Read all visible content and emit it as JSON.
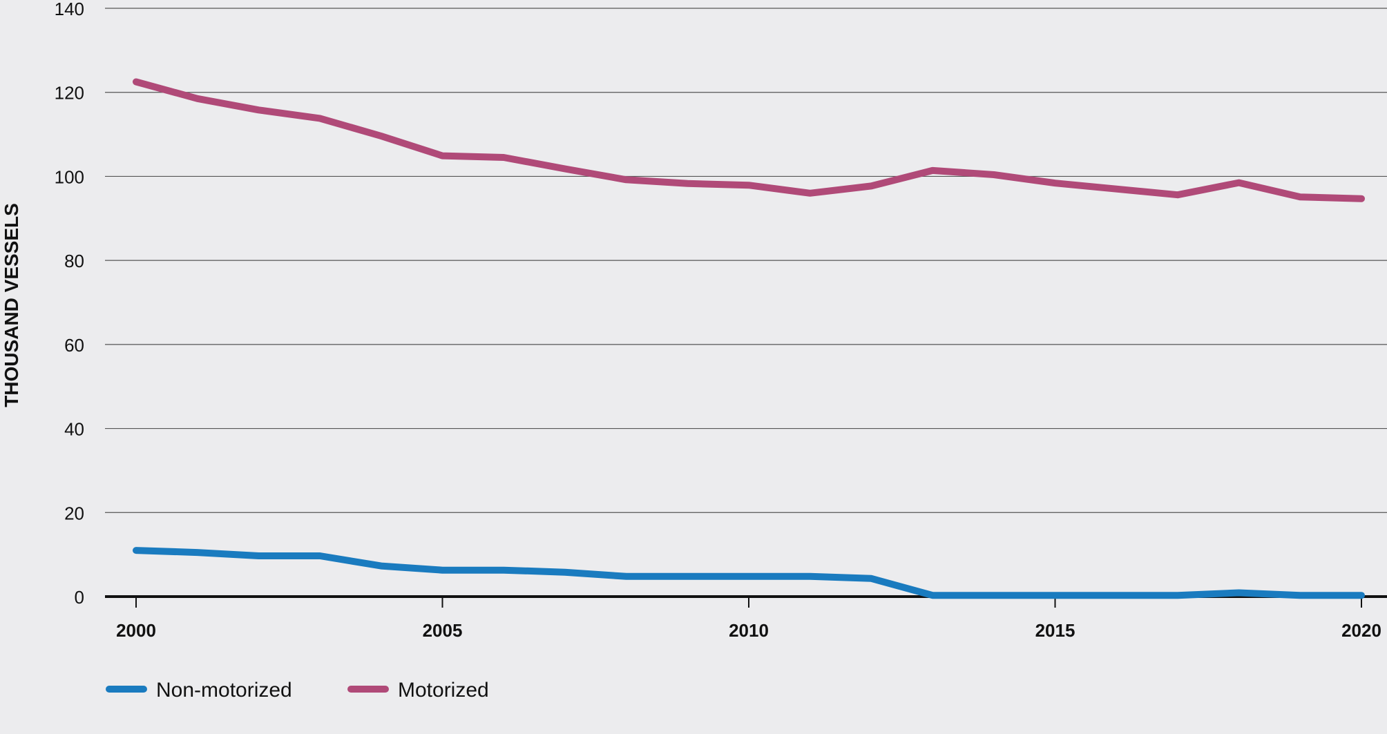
{
  "chart_data": {
    "type": "line",
    "ylabel": "THOUSAND VESSELS",
    "xlabel": "",
    "ylim": [
      0,
      140
    ],
    "xlim": [
      2000,
      2020
    ],
    "y_ticks": [
      "0",
      "20",
      "40",
      "60",
      "80",
      "100",
      "120",
      "140"
    ],
    "x_ticks": [
      "2000",
      "2005",
      "2010",
      "2015",
      "2020"
    ],
    "grid": true,
    "legend_position": "bottom-left",
    "x": [
      2000,
      2001,
      2002,
      2003,
      2004,
      2005,
      2006,
      2007,
      2008,
      2009,
      2010,
      2011,
      2012,
      2013,
      2014,
      2015,
      2016,
      2017,
      2018,
      2019,
      2020
    ],
    "series": [
      {
        "name": "Non-motorized",
        "color": "#1a7bbf",
        "values": [
          11,
          10.5,
          9.7,
          9.7,
          7.3,
          6.3,
          6.3,
          5.8,
          4.8,
          4.8,
          4.8,
          4.8,
          4.3,
          0.3,
          0.3,
          0.3,
          0.3,
          0.3,
          0.9,
          0.3,
          0.3
        ]
      },
      {
        "name": "Motorized",
        "color": "#b04a78",
        "values": [
          122.5,
          118.5,
          115.8,
          113.8,
          109.6,
          104.9,
          104.5,
          101.8,
          99.2,
          98.3,
          97.9,
          96.0,
          97.7,
          101.4,
          100.4,
          98.4,
          97.0,
          95.6,
          98.5,
          95.1,
          94.7
        ]
      }
    ]
  }
}
